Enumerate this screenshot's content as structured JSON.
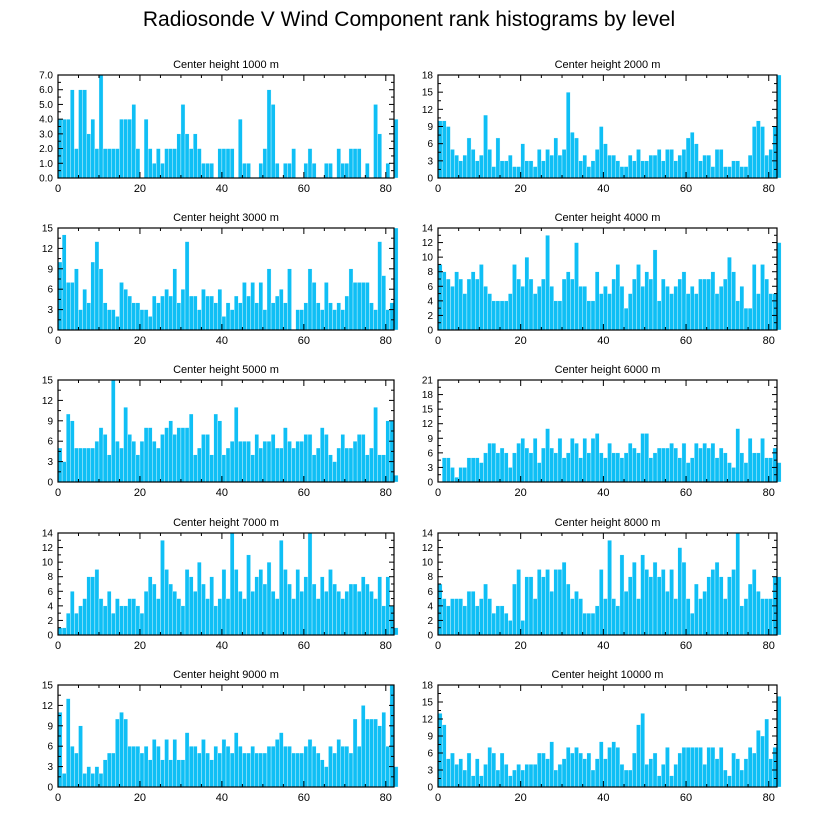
{
  "title": "Radiosonde V Wind Component rank histograms by level",
  "colors": {
    "bar": "#0fbff5",
    "bar_edge": "#ffffff",
    "axis": "#000000"
  },
  "chart_data": [
    {
      "type": "bar",
      "title": "Center height 1000 m",
      "x_start": 0,
      "xlim": [
        0,
        82
      ],
      "ylim": [
        0,
        7
      ],
      "xticks": [
        0,
        20,
        40,
        60,
        80
      ],
      "yticks": [
        0,
        1,
        2,
        3,
        4,
        5,
        6,
        7
      ],
      "ytick_labels": [
        "0.0",
        "1.0",
        "2.0",
        "3.0",
        "4.0",
        "5.0",
        "6.0",
        "7.0"
      ],
      "values": [
        4,
        4,
        4,
        6,
        2,
        6,
        6,
        3,
        4,
        2,
        7,
        2,
        2,
        2,
        2,
        4,
        4,
        4,
        5,
        2,
        0,
        4,
        2,
        1,
        2,
        1,
        2,
        2,
        2,
        3,
        5,
        3,
        2,
        3,
        2,
        1,
        1,
        1,
        0,
        2,
        2,
        2,
        2,
        0,
        4,
        1,
        1,
        0,
        0,
        1,
        2,
        6,
        5,
        1,
        0,
        1,
        1,
        2,
        0,
        0,
        1,
        2,
        1,
        0,
        0,
        1,
        1,
        0,
        2,
        1,
        1,
        2,
        2,
        2,
        0,
        1,
        0,
        5,
        3,
        0,
        1,
        0,
        4
      ]
    },
    {
      "type": "bar",
      "title": "Center height 2000 m",
      "x_start": 0,
      "xlim": [
        0,
        82
      ],
      "ylim": [
        0,
        18
      ],
      "xticks": [
        0,
        20,
        40,
        60,
        80
      ],
      "yticks": [
        0,
        3,
        6,
        9,
        12,
        15,
        18
      ],
      "values": [
        10,
        10,
        9,
        5,
        4,
        3,
        4,
        7,
        5,
        3,
        4,
        11,
        5,
        2,
        7,
        3,
        3,
        4,
        2,
        2,
        6,
        3,
        3,
        2,
        5,
        3,
        5,
        4,
        7,
        4,
        5,
        15,
        8,
        7,
        3,
        4,
        2,
        3,
        5,
        9,
        6,
        4,
        4,
        3,
        2,
        2,
        4,
        3,
        5,
        3,
        3,
        4,
        4,
        5,
        3,
        5,
        5,
        3,
        4,
        5,
        7,
        8,
        6,
        3,
        4,
        4,
        2,
        5,
        5,
        2,
        2,
        3,
        3,
        2,
        2,
        4,
        9,
        10,
        9,
        4,
        5,
        9,
        18
      ]
    },
    {
      "type": "bar",
      "title": "Center height 3000 m",
      "x_start": 0,
      "xlim": [
        0,
        82
      ],
      "ylim": [
        0,
        15
      ],
      "xticks": [
        0,
        20,
        40,
        60,
        80
      ],
      "yticks": [
        0,
        3,
        6,
        9,
        12,
        15
      ],
      "values": [
        10,
        14,
        7,
        7,
        9,
        3,
        6,
        4,
        10,
        13,
        9,
        4,
        3,
        3,
        2,
        7,
        6,
        5,
        4,
        4,
        3,
        3,
        2,
        5,
        4,
        5,
        6,
        5,
        9,
        4,
        6,
        13,
        5,
        5,
        3,
        6,
        5,
        5,
        4,
        6,
        2,
        4,
        3,
        5,
        4,
        7,
        5,
        7,
        4,
        7,
        3,
        9,
        4,
        5,
        6,
        4,
        9,
        0,
        3,
        3,
        4,
        9,
        7,
        4,
        3,
        7,
        4,
        3,
        4,
        3,
        5,
        9,
        7,
        7,
        7,
        7,
        4,
        3,
        13,
        8,
        3,
        4,
        15
      ]
    },
    {
      "type": "bar",
      "title": "Center height 4000 m",
      "x_start": 0,
      "xlim": [
        0,
        82
      ],
      "ylim": [
        0,
        14
      ],
      "xticks": [
        0,
        20,
        40,
        60,
        80
      ],
      "yticks": [
        0,
        2,
        4,
        6,
        8,
        10,
        12,
        14
      ],
      "values": [
        9,
        8,
        7,
        6,
        8,
        7,
        5,
        7,
        8,
        7,
        9,
        6,
        5,
        4,
        4,
        4,
        4,
        5,
        9,
        7,
        6,
        10,
        7,
        5,
        6,
        7,
        13,
        6,
        4,
        4,
        7,
        8,
        7,
        12,
        6,
        6,
        4,
        4,
        8,
        5,
        6,
        5,
        7,
        9,
        6,
        3,
        5,
        7,
        9,
        6,
        8,
        7,
        11,
        4,
        7,
        6,
        5,
        6,
        7,
        8,
        5,
        6,
        5,
        7,
        7,
        7,
        8,
        5,
        6,
        7,
        10,
        8,
        4,
        6,
        3,
        3,
        9,
        5,
        9,
        7,
        5,
        5,
        12
      ]
    },
    {
      "type": "bar",
      "title": "Center height 5000 m",
      "x_start": 0,
      "xlim": [
        0,
        82
      ],
      "ylim": [
        0,
        15
      ],
      "xticks": [
        0,
        20,
        40,
        60,
        80
      ],
      "yticks": [
        0,
        3,
        6,
        9,
        12,
        15
      ],
      "values": [
        5,
        3,
        10,
        9,
        5,
        5,
        5,
        5,
        5,
        6,
        8,
        7,
        4,
        15,
        6,
        5,
        11,
        7,
        6,
        4,
        6,
        8,
        8,
        6,
        5,
        7,
        8,
        9,
        7,
        8,
        8,
        8,
        10,
        4,
        5,
        7,
        7,
        4,
        10,
        9,
        4,
        5,
        6,
        11,
        6,
        6,
        6,
        4,
        7,
        5,
        6,
        6,
        7,
        5,
        5,
        8,
        6,
        5,
        6,
        6,
        7,
        7,
        4,
        5,
        8,
        7,
        4,
        3,
        5,
        7,
        5,
        5,
        6,
        7,
        7,
        4,
        5,
        11,
        4,
        4,
        9,
        9,
        1
      ]
    },
    {
      "type": "bar",
      "title": "Center height 6000 m",
      "x_start": 0,
      "xlim": [
        0,
        82
      ],
      "ylim": [
        0,
        21
      ],
      "xticks": [
        0,
        20,
        40,
        60,
        80
      ],
      "yticks": [
        0,
        3,
        6,
        9,
        12,
        15,
        18,
        21
      ],
      "values": [
        0,
        5,
        5,
        3,
        1,
        3,
        3,
        5,
        5,
        5,
        4,
        6,
        8,
        8,
        6,
        7,
        6,
        3,
        6,
        8,
        9,
        7,
        6,
        9,
        4,
        7,
        11,
        7,
        6,
        9,
        5,
        6,
        9,
        8,
        5,
        9,
        6,
        9,
        10,
        6,
        5,
        8,
        6,
        6,
        5,
        6,
        8,
        7,
        6,
        10,
        10,
        5,
        6,
        7,
        7,
        7,
        8,
        7,
        5,
        8,
        4,
        5,
        8,
        7,
        8,
        7,
        8,
        5,
        7,
        6,
        4,
        3,
        11,
        6,
        4,
        9,
        6,
        6,
        9,
        5,
        5,
        7,
        4
      ]
    },
    {
      "type": "bar",
      "title": "Center height 7000 m",
      "x_start": 0,
      "xlim": [
        0,
        82
      ],
      "ylim": [
        0,
        14
      ],
      "xticks": [
        0,
        20,
        40,
        60,
        80
      ],
      "yticks": [
        0,
        2,
        4,
        6,
        8,
        10,
        12,
        14
      ],
      "values": [
        1,
        1,
        3,
        6,
        3,
        4,
        5,
        8,
        8,
        9,
        5,
        4,
        6,
        3,
        5,
        4,
        4,
        5,
        5,
        4,
        3,
        6,
        8,
        7,
        5,
        13,
        9,
        7,
        6,
        5,
        4,
        9,
        8,
        6,
        10,
        7,
        5,
        8,
        4,
        5,
        9,
        5,
        14,
        9,
        6,
        5,
        11,
        6,
        8,
        9,
        7,
        10,
        6,
        5,
        13,
        9,
        7,
        5,
        9,
        6,
        8,
        14,
        7,
        5,
        8,
        6,
        9,
        7,
        6,
        5,
        6,
        7,
        7,
        6,
        8,
        7,
        6,
        5,
        8,
        4,
        8,
        4,
        1
      ]
    },
    {
      "type": "bar",
      "title": "Center height 8000 m",
      "x_start": 0,
      "xlim": [
        0,
        82
      ],
      "ylim": [
        0,
        14
      ],
      "xticks": [
        0,
        20,
        40,
        60,
        80
      ],
      "yticks": [
        0,
        2,
        4,
        6,
        8,
        10,
        12,
        14
      ],
      "values": [
        7,
        5,
        4,
        5,
        5,
        5,
        4,
        6,
        6,
        4,
        5,
        7,
        5,
        3,
        4,
        4,
        3,
        2,
        7,
        9,
        2,
        8,
        8,
        5,
        9,
        8,
        9,
        6,
        9,
        9,
        10,
        7,
        5,
        6,
        5,
        3,
        3,
        3,
        4,
        9,
        5,
        13,
        5,
        4,
        11,
        6,
        8,
        10,
        5,
        11,
        9,
        8,
        10,
        8,
        9,
        6,
        9,
        5,
        12,
        10,
        5,
        3,
        7,
        5,
        6,
        8,
        9,
        10,
        8,
        5,
        8,
        9,
        14,
        4,
        5,
        7,
        9,
        6,
        5,
        5,
        5,
        8,
        8
      ]
    },
    {
      "type": "bar",
      "title": "Center height 9000 m",
      "x_start": 0,
      "xlim": [
        0,
        82
      ],
      "ylim": [
        0,
        15
      ],
      "xticks": [
        0,
        20,
        40,
        60,
        80
      ],
      "yticks": [
        0,
        3,
        6,
        9,
        12,
        15
      ],
      "values": [
        11,
        2,
        13,
        6,
        5,
        9,
        2,
        3,
        2,
        3,
        2,
        4,
        5,
        5,
        10,
        11,
        10,
        6,
        6,
        6,
        5,
        6,
        4,
        7,
        6,
        4,
        7,
        4,
        7,
        4,
        4,
        8,
        6,
        6,
        5,
        7,
        5,
        4,
        6,
        5,
        7,
        6,
        5,
        8,
        6,
        5,
        5,
        6,
        5,
        5,
        5,
        6,
        6,
        7,
        8,
        6,
        6,
        5,
        5,
        5,
        6,
        7,
        6,
        5,
        4,
        3,
        6,
        5,
        7,
        6,
        6,
        5,
        10,
        6,
        12,
        10,
        10,
        10,
        9,
        11,
        6,
        15,
        3
      ]
    },
    {
      "type": "bar",
      "title": "Center height 10000 m",
      "x_start": 0,
      "xlim": [
        0,
        82
      ],
      "ylim": [
        0,
        18
      ],
      "xticks": [
        0,
        20,
        40,
        60,
        80
      ],
      "yticks": [
        0,
        3,
        6,
        9,
        12,
        15,
        18
      ],
      "values": [
        13,
        11,
        5,
        6,
        4,
        5,
        3,
        6,
        2,
        5,
        2,
        4,
        7,
        6,
        3,
        6,
        4,
        2,
        3,
        4,
        3,
        4,
        4,
        4,
        6,
        6,
        5,
        8,
        3,
        4,
        5,
        7,
        6,
        7,
        6,
        5,
        6,
        3,
        5,
        8,
        5,
        7,
        8,
        7,
        4,
        3,
        3,
        6,
        11,
        13,
        4,
        5,
        6,
        2,
        4,
        7,
        2,
        4,
        6,
        7,
        7,
        7,
        7,
        7,
        4,
        7,
        7,
        5,
        7,
        3,
        2,
        6,
        5,
        3,
        5,
        7,
        6,
        10,
        9,
        12,
        5,
        7,
        16
      ]
    }
  ]
}
